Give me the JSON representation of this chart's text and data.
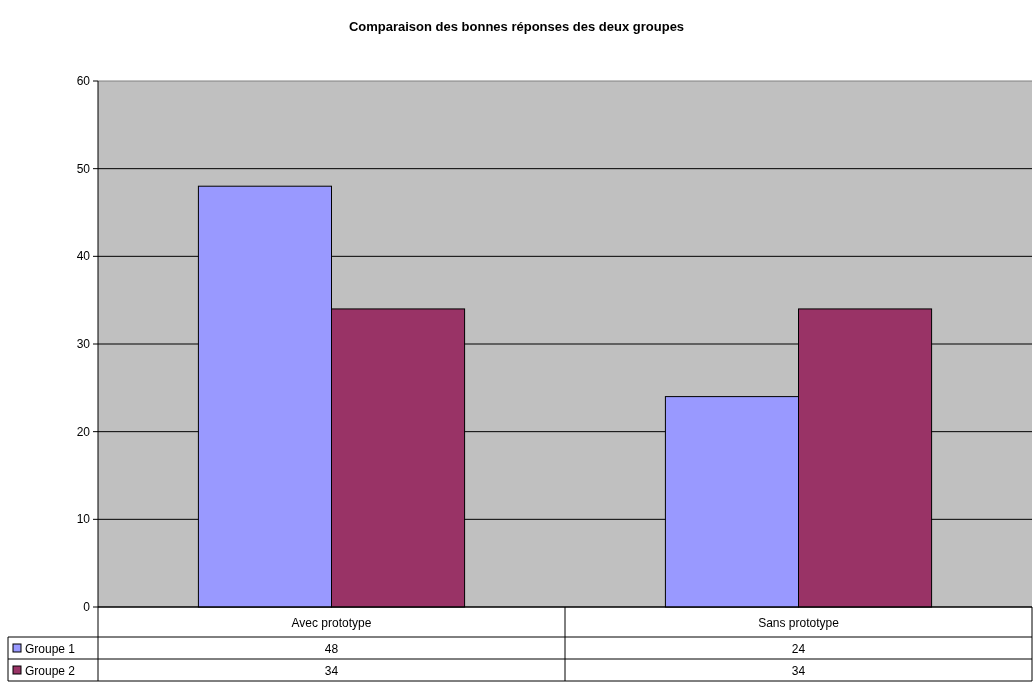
{
  "chart_data": {
    "type": "bar",
    "title": "Comparaison des bonnes réponses des deux groupes",
    "categories": [
      "Avec prototype",
      "Sans prototype"
    ],
    "series": [
      {
        "name": "Groupe 1",
        "color": "#9999ff",
        "values": [
          48,
          24
        ]
      },
      {
        "name": "Groupe 2",
        "color": "#993366",
        "values": [
          34,
          34
        ]
      }
    ],
    "ylim": [
      0,
      60
    ],
    "yticks": [
      0,
      10,
      20,
      30,
      40,
      50,
      60
    ],
    "grid": "y",
    "legend": "bottom",
    "data_labels": true
  }
}
